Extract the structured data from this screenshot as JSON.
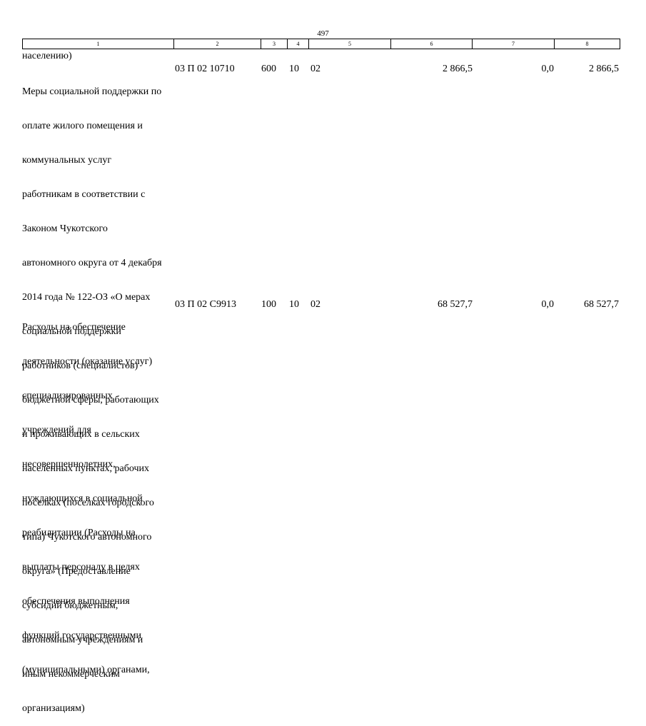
{
  "page_number": "497",
  "header_columns": [
    "1",
    "2",
    "3",
    "4",
    "5",
    "6",
    "7",
    "8"
  ],
  "continuation_text": "населению)",
  "rows": [
    {
      "description_lines": [
        "Меры социальной поддержки по",
        "оплате жилого помещения и",
        "коммунальных услуг",
        "работникам в соответствии с",
        "Законом Чукотского",
        "автономного округа от 4 декабря",
        "2014 года № 122-ОЗ «О мерах",
        "социальной поддержки",
        "работников (специалистов)",
        "бюджетной сферы, работающих",
        "и проживающих в сельских",
        "населенных пунктах, рабочих",
        "поселках (поселках городского",
        "типа) Чукотского автономного",
        "округа» (Предоставление",
        "субсидий бюджетным,",
        "автономным учреждениям и",
        "иным некоммерческим",
        "организациям)"
      ],
      "code": "03 П 02 10710",
      "col3": "600",
      "col4": "10",
      "col5": "02",
      "col6": "2 866,5",
      "col7": "0,0",
      "col8": "2 866,5"
    },
    {
      "description_lines": [
        "Расходы на обеспечение",
        "деятельности (оказание услуг)",
        "специализированных",
        "учреждений для",
        "несовершеннолетних,",
        "нуждающихся в социальной",
        "реабилитации (Расходы на",
        "выплаты персоналу в целях",
        "обеспечения выполнения",
        "функций государственными",
        "(муниципальными) органами,"
      ],
      "code": "03 П 02 С9913",
      "col3": "100",
      "col4": "10",
      "col5": "02",
      "col6": "68 527,7",
      "col7": "0,0",
      "col8": "68 527,7"
    }
  ]
}
